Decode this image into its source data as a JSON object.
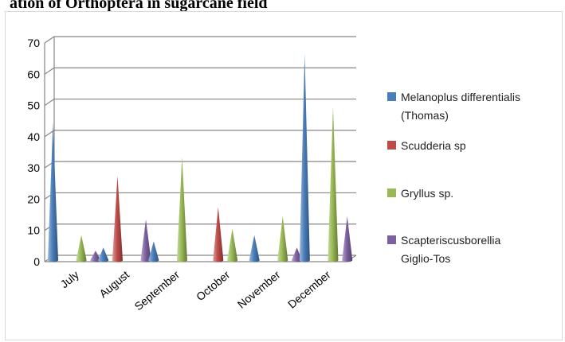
{
  "title": "ation of Orthoptera in sugarcane field",
  "chart_data": {
    "type": "bar",
    "style": "3d-cone",
    "categories": [
      "July",
      "August",
      "September",
      "October",
      "November",
      "December"
    ],
    "ylim": [
      0,
      70
    ],
    "yticks": [
      0,
      10,
      20,
      30,
      40,
      50,
      60,
      70
    ],
    "grid": true,
    "legend_position": "right",
    "series": [
      {
        "name_lines": [
          "Melanoplus differentialis",
          "(Thomas)"
        ],
        "color": "#4a7ebb",
        "values": [
          44,
          4,
          6,
          0,
          8,
          66
        ]
      },
      {
        "name_lines": [
          "Scudderia sp"
        ],
        "color": "#be4b48",
        "values": [
          0,
          27,
          0,
          17,
          0,
          0
        ]
      },
      {
        "name_lines": [
          "Gryllus sp."
        ],
        "color": "#98b954",
        "values": [
          8,
          0,
          33,
          10,
          14,
          49
        ]
      },
      {
        "name_lines": [
          "Scapteriscusborellia",
          "Giglio-Tos"
        ],
        "color": "#7d60a0",
        "values": [
          3,
          13,
          0,
          0,
          4,
          14
        ]
      }
    ]
  }
}
